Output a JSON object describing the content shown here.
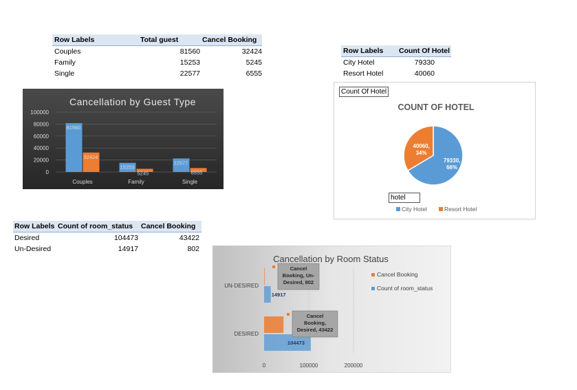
{
  "tables": {
    "guest": {
      "headers": [
        "Row Labels",
        "Total guest",
        "Cancel Booking"
      ],
      "rows": [
        [
          "Couples",
          "81560",
          "32424"
        ],
        [
          "Family",
          "15253",
          "5245"
        ],
        [
          "Single",
          "22577",
          "6555"
        ]
      ]
    },
    "hotel": {
      "headers": [
        "Row Labels",
        "Count Of Hotel"
      ],
      "rows": [
        [
          "City Hotel",
          "79330"
        ],
        [
          "Resort Hotel",
          "40060"
        ]
      ]
    },
    "room": {
      "headers": [
        "Row Labels",
        "Count of room_status",
        "Cancel Booking"
      ],
      "rows": [
        [
          "Desired",
          "104473",
          "43422"
        ],
        [
          "Un-Desired",
          "14917",
          "802"
        ]
      ]
    }
  },
  "colors": {
    "blue": "#5b9bd5",
    "orange": "#ed7d31",
    "dark_bg": "#3a3a3a",
    "gray_bg": "#d9d9d9",
    "callout": "#a6a6a6"
  },
  "chart_data": [
    {
      "type": "bar",
      "title": "Cancellation by Guest Type",
      "categories": [
        "Couples",
        "Family",
        "Single"
      ],
      "series": [
        {
          "values": [
            81560,
            15253,
            22577
          ],
          "labels": [
            "81560",
            "15253",
            "22577"
          ]
        },
        {
          "values": [
            32424,
            5245,
            6555
          ],
          "labels": [
            "32424",
            "5245",
            "6555"
          ]
        }
      ],
      "ylim": [
        0,
        100000
      ],
      "yticks": [
        "0",
        "20000",
        "40000",
        "60000",
        "80000",
        "100000"
      ],
      "grid": true,
      "legend": "none"
    },
    {
      "type": "pie",
      "field_button": "Count Of Hotel",
      "title": "COUNT OF HOTEL",
      "slices": [
        {
          "name": "City Hotel",
          "value": 79330,
          "label": "79330,",
          "pct": "66%"
        },
        {
          "name": "Resort Hotel",
          "value": 40060,
          "label": "40060,",
          "pct": "34%"
        }
      ],
      "filter_button": "hotel",
      "legend": "bottom"
    },
    {
      "type": "bar",
      "orientation": "horizontal",
      "title": "Cancellation by Room Status",
      "categories": [
        "DESIRED",
        "UN-DESIRED"
      ],
      "series": [
        {
          "name": "Cancel Booking",
          "values": [
            43422,
            802
          ],
          "callouts": [
            "Cancel Booking, Desired, 43422",
            "Cancel Booking, Un-Desired, 802"
          ]
        },
        {
          "name": "Count of room_status",
          "values": [
            104473,
            14917
          ],
          "labels": [
            "104473",
            "14917"
          ]
        }
      ],
      "xlim": [
        0,
        250000
      ],
      "xticks": [
        "0",
        "100000",
        "200000"
      ],
      "grid": true,
      "legend": "top-right"
    }
  ]
}
